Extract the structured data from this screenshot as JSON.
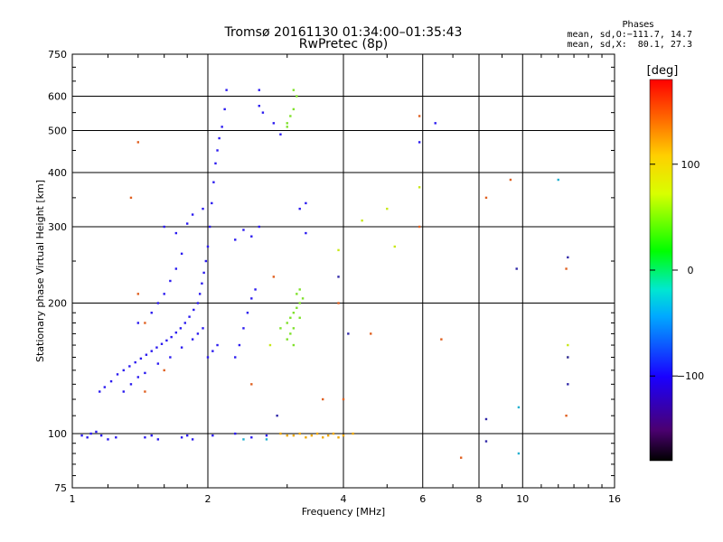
{
  "header": {
    "title_line1": "Tromsø 20161130 01:34:00–01:35:43",
    "title_line2": "RwPretec (8p)"
  },
  "phase_box": {
    "heading": "Phases",
    "line_o": "mean, sd,O:−111.7, 14.7",
    "line_x": "mean, sd,X:  80.1, 27.3"
  },
  "colorbar": {
    "label": "[deg]",
    "ticks": [
      "100",
      "0",
      "−100"
    ],
    "tick_values": [
      100,
      0,
      -100
    ],
    "range": [
      -180,
      180
    ]
  },
  "chart_data": {
    "type": "scatter",
    "xlabel": "Frequency [MHz]",
    "ylabel": "Stationary phase Virtual Height [km]",
    "x_scale": "log",
    "y_scale": "log",
    "xlim": [
      1,
      16
    ],
    "ylim": [
      75,
      750
    ],
    "x_ticks": [
      1,
      2,
      4,
      6,
      8,
      10,
      16
    ],
    "x_tick_labels": [
      "1",
      "2",
      "4",
      "6",
      "8",
      "10",
      "16"
    ],
    "y_ticks": [
      75,
      100,
      200,
      300,
      400,
      500,
      600,
      750
    ],
    "y_tick_labels": [
      "75",
      "100",
      "200",
      "300",
      "400",
      "500",
      "600",
      "750"
    ],
    "grid": true,
    "color_scale": "phase [deg], -180 to 180, rainbow",
    "series": [
      {
        "mode": "O",
        "color": "#2b1bf0",
        "points": [
          [
            1.05,
            99
          ],
          [
            1.08,
            98
          ],
          [
            1.1,
            100
          ],
          [
            1.13,
            101
          ],
          [
            1.16,
            99
          ],
          [
            1.2,
            97
          ],
          [
            1.25,
            98
          ],
          [
            1.45,
            98
          ],
          [
            1.5,
            99
          ],
          [
            1.55,
            97
          ],
          [
            1.75,
            98
          ],
          [
            1.8,
            99
          ],
          [
            1.85,
            97
          ],
          [
            2.05,
            99
          ],
          [
            1.15,
            125
          ],
          [
            1.18,
            128
          ],
          [
            1.22,
            132
          ],
          [
            1.26,
            137
          ],
          [
            1.3,
            140
          ],
          [
            1.34,
            143
          ],
          [
            1.38,
            146
          ],
          [
            1.42,
            149
          ],
          [
            1.46,
            152
          ],
          [
            1.5,
            155
          ],
          [
            1.54,
            158
          ],
          [
            1.58,
            161
          ],
          [
            1.62,
            164
          ],
          [
            1.66,
            167
          ],
          [
            1.7,
            171
          ],
          [
            1.74,
            175
          ],
          [
            1.78,
            180
          ],
          [
            1.82,
            186
          ],
          [
            1.86,
            193
          ],
          [
            1.9,
            200
          ],
          [
            1.92,
            210
          ],
          [
            1.94,
            222
          ],
          [
            1.96,
            235
          ],
          [
            1.98,
            250
          ],
          [
            2.0,
            270
          ],
          [
            2.02,
            300
          ],
          [
            2.04,
            340
          ],
          [
            2.06,
            380
          ],
          [
            2.08,
            420
          ],
          [
            2.1,
            450
          ],
          [
            2.12,
            480
          ],
          [
            2.15,
            510
          ],
          [
            2.18,
            560
          ],
          [
            2.2,
            620
          ],
          [
            1.3,
            125
          ],
          [
            1.35,
            130
          ],
          [
            1.4,
            135
          ],
          [
            1.45,
            138
          ],
          [
            1.55,
            145
          ],
          [
            1.65,
            150
          ],
          [
            1.75,
            158
          ],
          [
            1.85,
            165
          ],
          [
            1.9,
            170
          ],
          [
            1.95,
            175
          ],
          [
            2.0,
            150
          ],
          [
            2.05,
            155
          ],
          [
            2.1,
            160
          ],
          [
            1.4,
            180
          ],
          [
            1.5,
            190
          ],
          [
            1.55,
            200
          ],
          [
            1.6,
            210
          ],
          [
            1.65,
            225
          ],
          [
            1.7,
            240
          ],
          [
            1.75,
            260
          ],
          [
            1.6,
            300
          ],
          [
            1.7,
            290
          ],
          [
            1.8,
            305
          ],
          [
            1.85,
            320
          ],
          [
            1.95,
            330
          ],
          [
            2.3,
            150
          ],
          [
            2.35,
            160
          ],
          [
            2.4,
            175
          ],
          [
            2.45,
            190
          ],
          [
            2.5,
            205
          ],
          [
            2.55,
            215
          ],
          [
            2.3,
            280
          ],
          [
            2.4,
            295
          ],
          [
            2.5,
            285
          ],
          [
            2.6,
            300
          ],
          [
            3.2,
            330
          ],
          [
            3.3,
            340
          ],
          [
            3.3,
            290
          ],
          [
            2.6,
            570
          ],
          [
            2.65,
            550
          ],
          [
            2.6,
            620
          ],
          [
            2.8,
            520
          ],
          [
            2.9,
            490
          ],
          [
            2.3,
            100
          ],
          [
            2.5,
            98
          ],
          [
            2.7,
            99
          ],
          [
            5.9,
            470
          ],
          [
            6.4,
            520
          ]
        ]
      },
      {
        "mode": "X",
        "color": "#7fe12a",
        "points": [
          [
            3.0,
            520
          ],
          [
            3.05,
            540
          ],
          [
            3.1,
            560
          ],
          [
            3.0,
            510
          ],
          [
            3.15,
            600
          ],
          [
            3.1,
            620
          ],
          [
            3.0,
            180
          ],
          [
            3.05,
            185
          ],
          [
            3.1,
            190
          ],
          [
            3.15,
            195
          ],
          [
            3.2,
            200
          ],
          [
            3.25,
            205
          ],
          [
            3.05,
            170
          ],
          [
            3.1,
            175
          ],
          [
            3.2,
            185
          ],
          [
            3.0,
            165
          ],
          [
            3.15,
            210
          ],
          [
            3.2,
            215
          ],
          [
            3.1,
            160
          ],
          [
            2.9,
            175
          ]
        ]
      },
      {
        "mode": "X",
        "color": "#f0a800",
        "points": [
          [
            3.1,
            99
          ],
          [
            3.2,
            100
          ],
          [
            3.3,
            98
          ],
          [
            3.4,
            99
          ],
          [
            3.5,
            100
          ],
          [
            3.6,
            98
          ],
          [
            3.7,
            99
          ],
          [
            3.8,
            100
          ],
          [
            3.9,
            98
          ],
          [
            4.0,
            99
          ],
          [
            4.2,
            100
          ],
          [
            3.0,
            99
          ],
          [
            2.9,
            100
          ]
        ]
      },
      {
        "mode": "scattered",
        "color": "#e06020",
        "points": [
          [
            1.4,
            470
          ],
          [
            1.35,
            350
          ],
          [
            1.4,
            210
          ],
          [
            1.45,
            180
          ],
          [
            1.6,
            140
          ],
          [
            2.5,
            130
          ],
          [
            2.8,
            230
          ],
          [
            3.9,
            200
          ],
          [
            4.6,
            170
          ],
          [
            5.9,
            540
          ],
          [
            5.9,
            300
          ],
          [
            6.6,
            165
          ],
          [
            7.3,
            88
          ],
          [
            8.3,
            350
          ],
          [
            9.4,
            385
          ],
          [
            12.5,
            110
          ],
          [
            12.5,
            240
          ],
          [
            1.45,
            125
          ],
          [
            3.6,
            120
          ],
          [
            4.0,
            120
          ]
        ]
      },
      {
        "mode": "scattered",
        "color": "#20b0d0",
        "points": [
          [
            9.8,
            90
          ],
          [
            9.8,
            115
          ],
          [
            12.0,
            385
          ],
          [
            2.4,
            97
          ],
          [
            2.7,
            97
          ]
        ]
      },
      {
        "mode": "scattered",
        "color": "#c8e818",
        "points": [
          [
            4.4,
            310
          ],
          [
            5.0,
            330
          ],
          [
            5.2,
            270
          ],
          [
            5.9,
            370
          ],
          [
            3.9,
            265
          ],
          [
            12.6,
            160
          ],
          [
            12.6,
            150
          ],
          [
            2.75,
            160
          ]
        ]
      },
      {
        "mode": "scattered",
        "color": "#3028a8",
        "points": [
          [
            8.3,
            96
          ],
          [
            8.3,
            108
          ],
          [
            9.7,
            240
          ],
          [
            12.6,
            255
          ],
          [
            12.6,
            150
          ],
          [
            12.6,
            130
          ],
          [
            3.9,
            230
          ],
          [
            4.1,
            170
          ],
          [
            2.85,
            110
          ]
        ]
      }
    ]
  }
}
